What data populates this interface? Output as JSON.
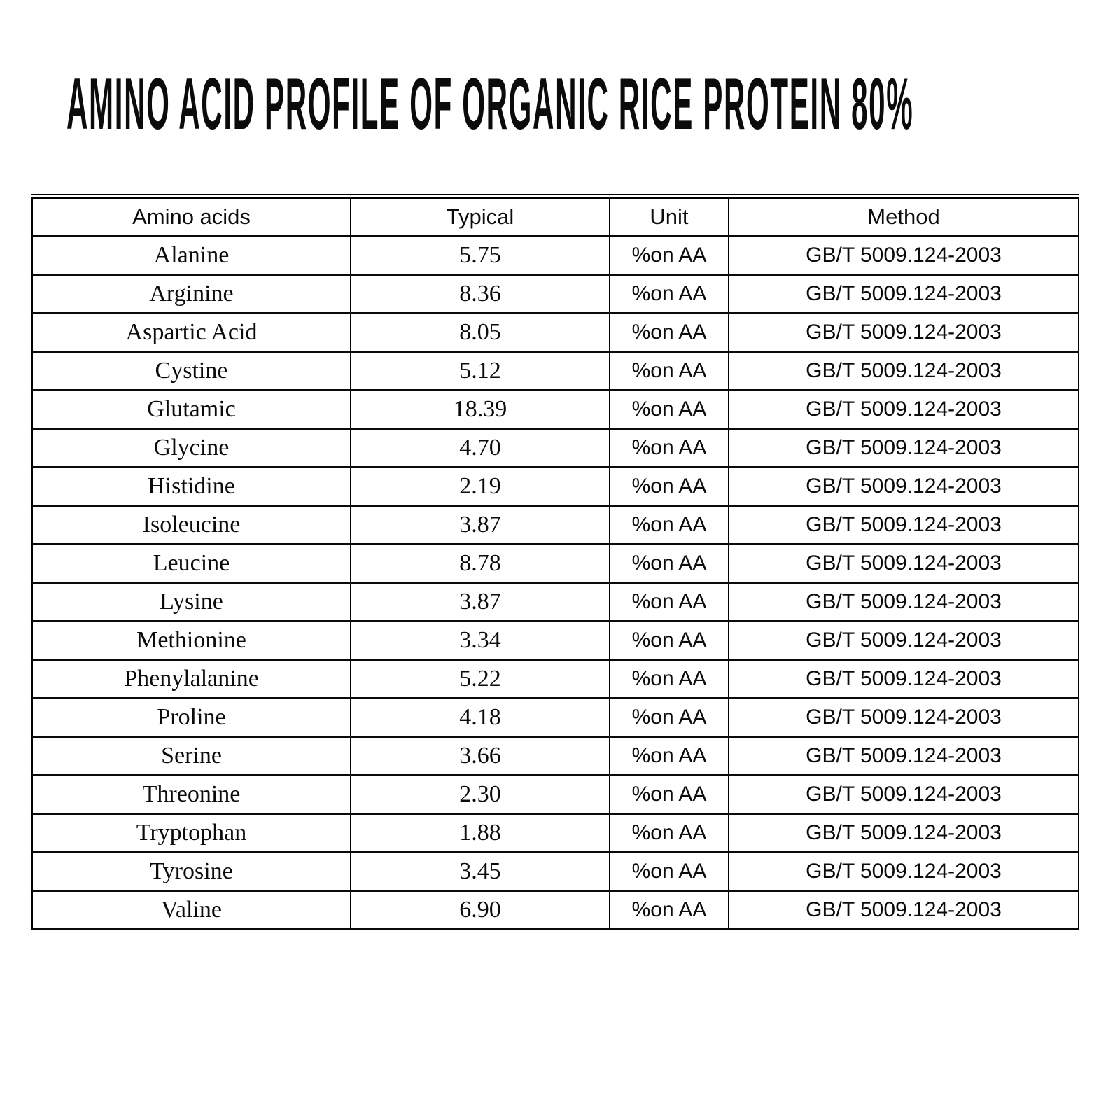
{
  "title": "AMINO ACID PROFILE OF ORGANIC RICE PROTEIN 80%",
  "table": {
    "headers": [
      "Amino acids",
      "Typical",
      "Unit",
      "Method"
    ],
    "rows": [
      {
        "name": "Alanine",
        "typical": "5.75",
        "unit": "%on AA",
        "method": "GB/T 5009.124-2003"
      },
      {
        "name": "Arginine",
        "typical": "8.36",
        "unit": "%on AA",
        "method": "GB/T 5009.124-2003"
      },
      {
        "name": "Aspartic Acid",
        "typical": "8.05",
        "unit": "%on AA",
        "method": "GB/T 5009.124-2003"
      },
      {
        "name": "Cystine",
        "typical": "5.12",
        "unit": "%on AA",
        "method": "GB/T 5009.124-2003"
      },
      {
        "name": "Glutamic",
        "typical": "18.39",
        "unit": "%on AA",
        "method": "GB/T 5009.124-2003"
      },
      {
        "name": "Glycine",
        "typical": "4.70",
        "unit": "%on AA",
        "method": "GB/T 5009.124-2003"
      },
      {
        "name": "Histidine",
        "typical": "2.19",
        "unit": "%on AA",
        "method": "GB/T 5009.124-2003"
      },
      {
        "name": "Isoleucine",
        "typical": "3.87",
        "unit": "%on AA",
        "method": "GB/T 5009.124-2003"
      },
      {
        "name": "Leucine",
        "typical": "8.78",
        "unit": "%on AA",
        "method": "GB/T 5009.124-2003"
      },
      {
        "name": "Lysine",
        "typical": "3.87",
        "unit": "%on AA",
        "method": "GB/T 5009.124-2003"
      },
      {
        "name": "Methionine",
        "typical": "3.34",
        "unit": "%on AA",
        "method": "GB/T 5009.124-2003"
      },
      {
        "name": "Phenylalanine",
        "typical": "5.22",
        "unit": "%on AA",
        "method": "GB/T 5009.124-2003"
      },
      {
        "name": "Proline",
        "typical": "4.18",
        "unit": "%on AA",
        "method": "GB/T 5009.124-2003"
      },
      {
        "name": "Serine",
        "typical": "3.66",
        "unit": "%on AA",
        "method": "GB/T 5009.124-2003"
      },
      {
        "name": "Threonine",
        "typical": "2.30",
        "unit": "%on AA",
        "method": "GB/T 5009.124-2003"
      },
      {
        "name": "Tryptophan",
        "typical": "1.88",
        "unit": "%on AA",
        "method": "GB/T 5009.124-2003"
      },
      {
        "name": "Tyrosine",
        "typical": "3.45",
        "unit": "%on AA",
        "method": "GB/T 5009.124-2003"
      },
      {
        "name": "Valine",
        "typical": "6.90",
        "unit": "%on AA",
        "method": "GB/T 5009.124-2003"
      }
    ]
  }
}
